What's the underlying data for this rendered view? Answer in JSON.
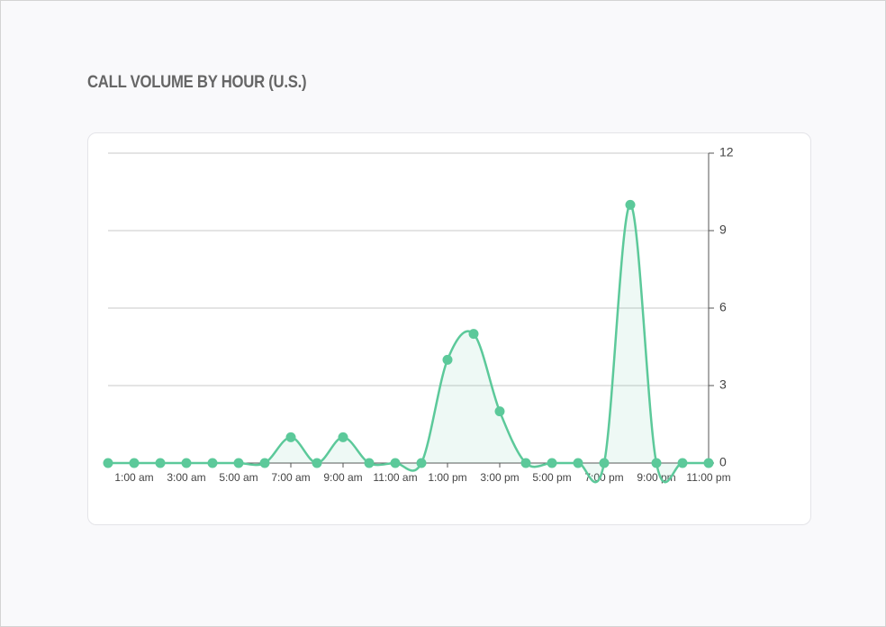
{
  "chart_data": {
    "type": "line",
    "title": "CALL VOLUME BY HOUR (U.S.)",
    "categories": [
      null,
      "1:00 am",
      null,
      "3:00 am",
      null,
      "5:00 am",
      null,
      "7:00 am",
      null,
      "9:00 am",
      null,
      "11:00 am",
      null,
      "1:00 pm",
      null,
      "3:00 pm",
      null,
      "5:00 pm",
      null,
      "7:00 pm",
      null,
      "9:00 pm",
      null,
      "11:00 pm"
    ],
    "values": [
      0,
      0,
      0,
      0,
      0,
      0,
      0,
      1,
      0,
      1,
      0,
      0,
      0,
      4,
      5,
      2,
      0,
      0,
      0,
      0,
      10,
      0,
      0,
      0
    ],
    "color": "#5cc99a",
    "ylim": [
      0,
      12
    ],
    "yticks": [
      0,
      3,
      6,
      9,
      12
    ],
    "grid": true,
    "y_axis_side": "right",
    "smooth": true
  }
}
